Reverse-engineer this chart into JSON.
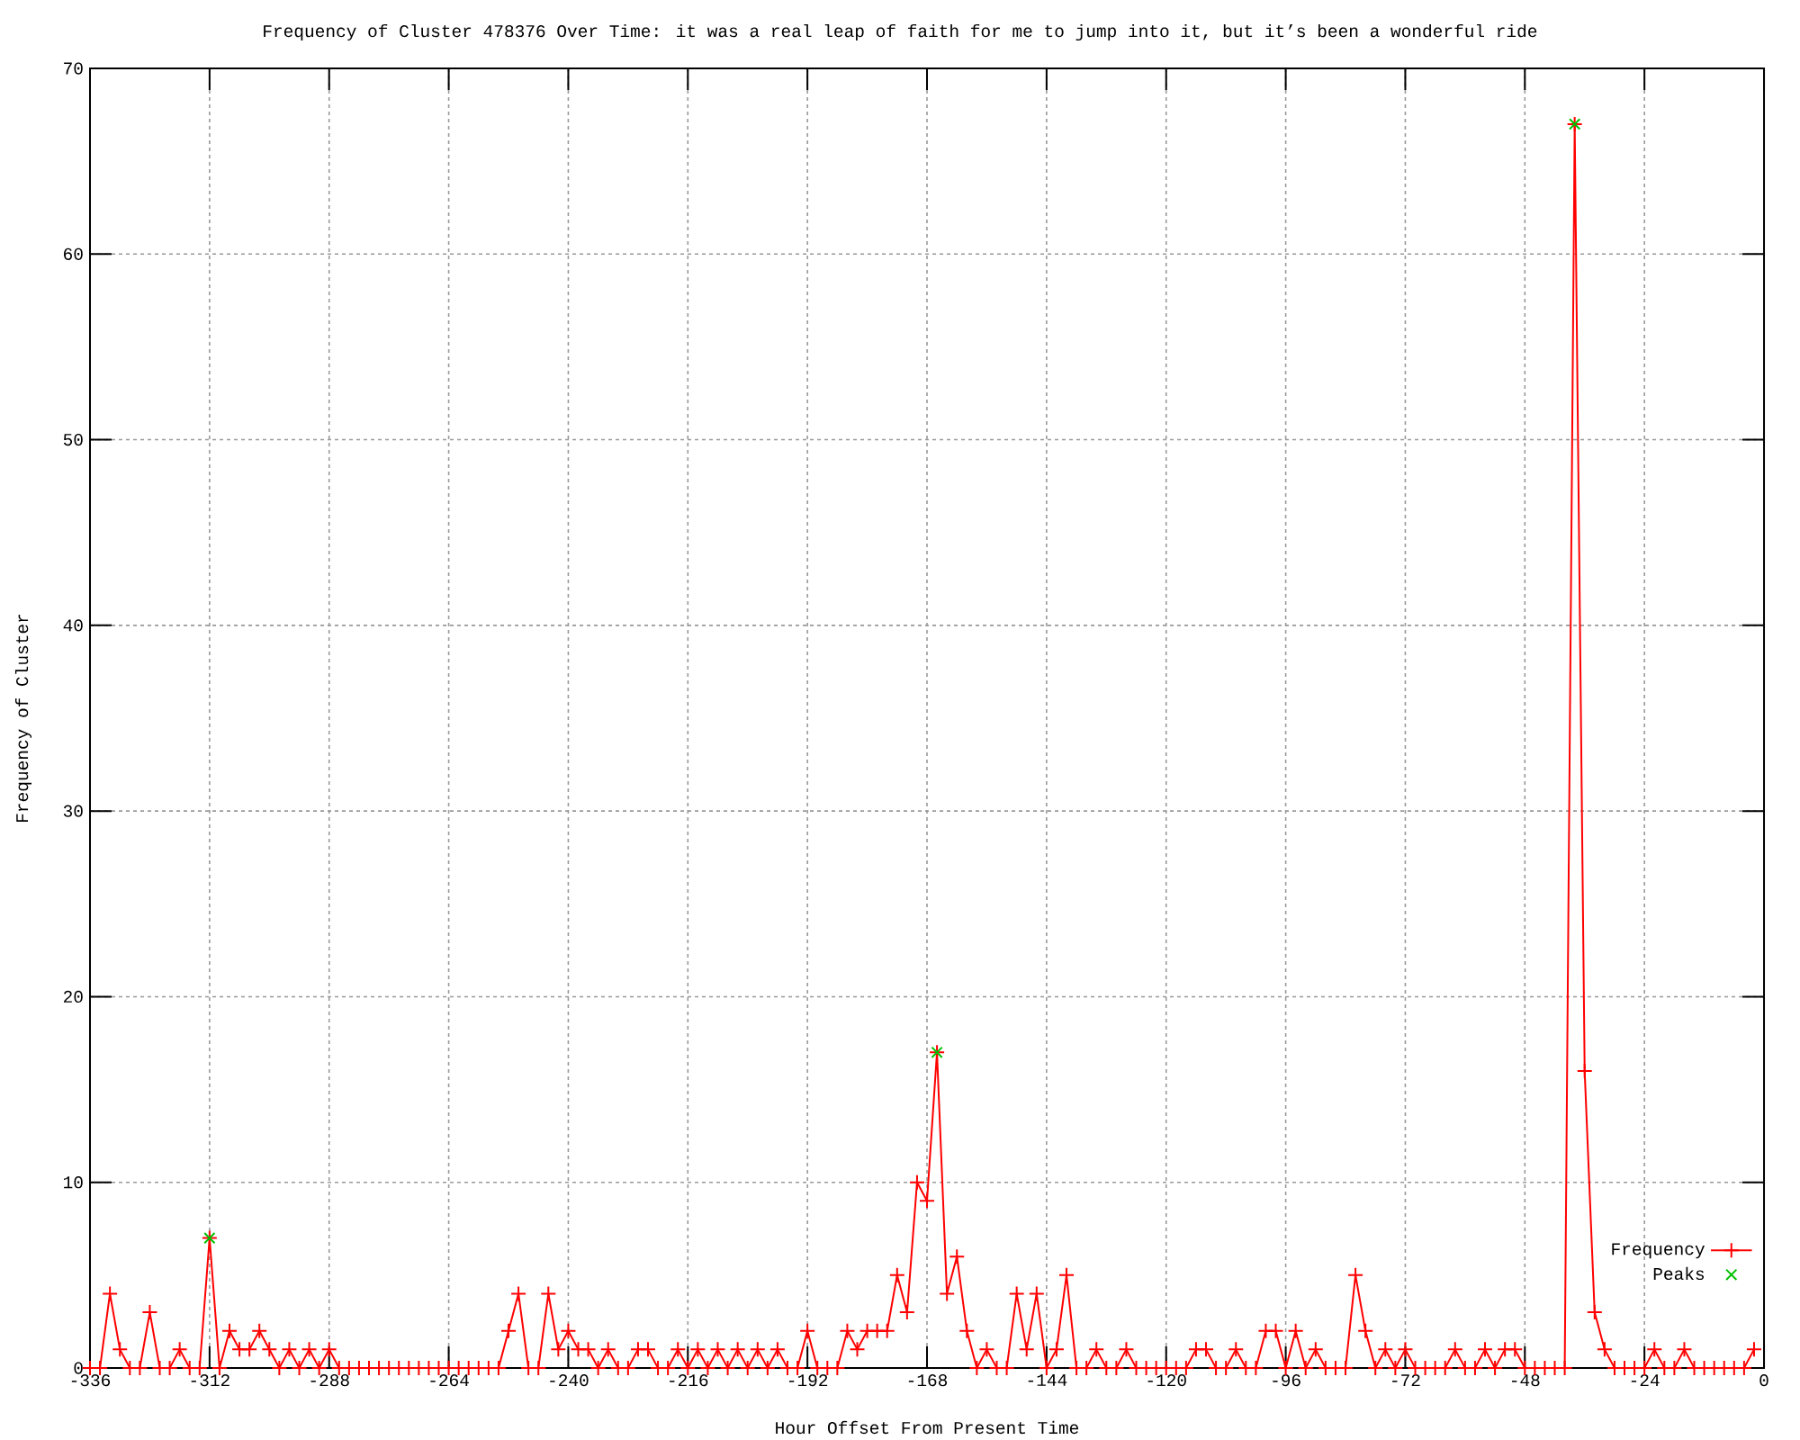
{
  "chart_data": {
    "type": "line",
    "title": "Frequency of Cluster 478376 Over Time: it was a real leap of faith for me to jump into it, but it’s been a wonderful ride",
    "xlabel": "Hour Offset From Present Time",
    "ylabel": "Frequency of Cluster",
    "x": [
      -336,
      -334,
      -332,
      -330,
      -328,
      -326,
      -324,
      -322,
      -320,
      -318,
      -316,
      -314,
      -312,
      -310,
      -308,
      -306,
      -304,
      -302,
      -300,
      -298,
      -296,
      -294,
      -292,
      -290,
      -288,
      -286,
      -284,
      -282,
      -280,
      -278,
      -276,
      -274,
      -272,
      -270,
      -268,
      -266,
      -264,
      -262,
      -260,
      -258,
      -256,
      -254,
      -252,
      -250,
      -248,
      -246,
      -244,
      -242,
      -240,
      -238,
      -236,
      -234,
      -232,
      -230,
      -228,
      -226,
      -224,
      -222,
      -220,
      -218,
      -216,
      -214,
      -212,
      -210,
      -208,
      -206,
      -204,
      -202,
      -200,
      -198,
      -196,
      -194,
      -192,
      -190,
      -188,
      -186,
      -184,
      -182,
      -180,
      -178,
      -176,
      -174,
      -172,
      -170,
      -168,
      -166,
      -164,
      -162,
      -160,
      -158,
      -156,
      -154,
      -152,
      -150,
      -148,
      -146,
      -144,
      -142,
      -140,
      -138,
      -136,
      -134,
      -132,
      -130,
      -128,
      -126,
      -124,
      -122,
      -120,
      -118,
      -116,
      -114,
      -112,
      -110,
      -108,
      -106,
      -104,
      -102,
      -100,
      -98,
      -96,
      -94,
      -92,
      -90,
      -88,
      -86,
      -84,
      -82,
      -80,
      -78,
      -76,
      -74,
      -72,
      -70,
      -68,
      -66,
      -64,
      -62,
      -60,
      -58,
      -56,
      -54,
      -52,
      -50,
      -48,
      -46,
      -44,
      -42,
      -40,
      -38,
      -36,
      -34,
      -32,
      -30,
      -28,
      -26,
      -24,
      -22,
      -20,
      -18,
      -16,
      -14,
      -12,
      -10,
      -8,
      -6,
      -4,
      -2
    ],
    "series": [
      {
        "name": "Frequency",
        "color": "#ff0000",
        "values": [
          0,
          0,
          4,
          1,
          0,
          0,
          3,
          0,
          0,
          1,
          0,
          0,
          7,
          0,
          2,
          1,
          1,
          2,
          1,
          0,
          1,
          0,
          1,
          0,
          1,
          0,
          0,
          0,
          0,
          0,
          0,
          0,
          0,
          0,
          0,
          0,
          0,
          0,
          0,
          0,
          0,
          0,
          2,
          4,
          0,
          0,
          4,
          1,
          2,
          1,
          1,
          0,
          1,
          0,
          0,
          1,
          1,
          0,
          0,
          1,
          0,
          1,
          0,
          1,
          0,
          1,
          0,
          1,
          0,
          1,
          0,
          0,
          2,
          0,
          0,
          0,
          2,
          1,
          2,
          2,
          2,
          5,
          3,
          10,
          9,
          17,
          4,
          6,
          2,
          0,
          1,
          0,
          0,
          4,
          1,
          4,
          0,
          1,
          5,
          0,
          0,
          1,
          0,
          0,
          1,
          0,
          0,
          0,
          0,
          0,
          0,
          1,
          1,
          0,
          0,
          1,
          0,
          0,
          2,
          2,
          0,
          2,
          0,
          1,
          0,
          0,
          0,
          5,
          2,
          0,
          1,
          0,
          1,
          0,
          0,
          0,
          0,
          1,
          0,
          0,
          1,
          0,
          1,
          1,
          0,
          0,
          0,
          0,
          0,
          67,
          16,
          3,
          1,
          0,
          0,
          0,
          0,
          1,
          0,
          0,
          1,
          0,
          0,
          0,
          0,
          0,
          0,
          1
        ]
      },
      {
        "name": "Peaks",
        "type": "scatter",
        "marker": "x",
        "color": "#00c000",
        "x": [
          -312,
          -166,
          -38
        ],
        "values": [
          7,
          17,
          67
        ]
      }
    ],
    "marker": "cross",
    "xlim": [
      -336,
      0
    ],
    "ylim": [
      0,
      70
    ],
    "xticks": [
      -336,
      -312,
      -288,
      -264,
      -240,
      -216,
      -192,
      -168,
      -144,
      -120,
      -96,
      -72,
      -48,
      -24,
      0
    ],
    "yticks": [
      0,
      10,
      20,
      30,
      40,
      50,
      60,
      70
    ],
    "grid": true,
    "legend": "bottom right"
  }
}
